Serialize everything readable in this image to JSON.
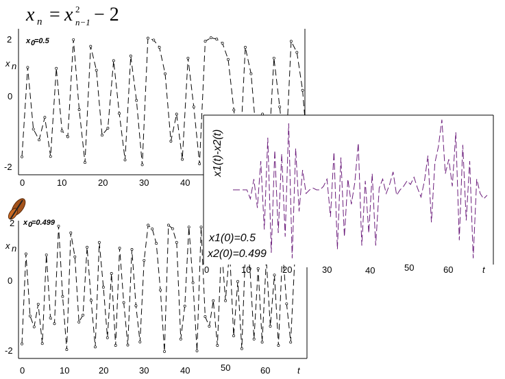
{
  "formula": {
    "lhs": "x",
    "lhs_sub": "n",
    "rhs": "x",
    "rhs_sup": "2",
    "rhs_sub": "n−1",
    "tail": "− 2"
  },
  "chart_data": [
    {
      "type": "line",
      "ylabel": "x",
      "ylabel_sub": "n",
      "annotation": "x",
      "annotation_sub": "0",
      "annotation_tail": "=0.5",
      "xticks": [
        "0",
        "10",
        "20",
        "30",
        "40"
      ],
      "yticks": [
        "2",
        "0",
        "-2"
      ],
      "ylim": [
        -2.1,
        2.1
      ],
      "xlim": [
        0,
        50
      ],
      "series": [
        {
          "values": [
            -1.75,
            1.06,
            -0.88,
            -1.22,
            -0.51,
            -1.74,
            1.03,
            -0.94,
            -1.12,
            1.93,
            -0.27,
            -1.93,
            1.72,
            0.97,
            -1.07,
            -0.85,
            1.27,
            -0.39,
            -1.85,
            1.42,
            0.02,
            -2.0,
            1.98,
            1.92,
            1.69,
            0.86,
            -1.26,
            -0.41,
            -1.83,
            1.35,
            -0.18,
            -1.97,
            1.88,
            1.99,
            1.95,
            1.82,
            1.31,
            -0.28,
            -1.92,
            1.69,
            0.86,
            -1.26,
            -0.41,
            -1.83,
            1.35,
            -0.18,
            -1.97,
            1.88,
            1.53,
            0.34,
            -1.88
          ]
        }
      ]
    },
    {
      "type": "line",
      "ylabel": "x",
      "ylabel_sub": "n",
      "annotation": "x",
      "annotation_sub": "0",
      "annotation_tail": "=0.499",
      "xticks": [
        "0",
        "10",
        "20",
        "30",
        "40",
        "50",
        "60",
        "t"
      ],
      "yticks": [
        "2",
        "0",
        "-2"
      ],
      "ylim": [
        -2.1,
        2.1
      ],
      "xlim": [
        0,
        70
      ],
      "series": [
        {
          "values": [
            -1.75,
            1.06,
            -0.88,
            -1.22,
            -0.51,
            -1.74,
            1.03,
            -0.94,
            -1.12,
            1.93,
            -0.27,
            -1.93,
            1.72,
            0.97,
            -1.07,
            -0.85,
            1.27,
            -0.39,
            -1.85,
            1.42,
            0.02,
            -1.56,
            0.45,
            -1.8,
            1.24,
            -0.46,
            -1.79,
            1.2,
            -0.56,
            -1.69,
            0.86,
            1.96,
            1.84,
            1.39,
            -0.07,
            -1.99,
            1.96,
            1.85,
            1.42,
            -1.6,
            -0.57,
            1.9,
            0.16,
            -1.97,
            1.9,
            -0.9,
            -1.2,
            -0.4,
            -1.8,
            1.3,
            -0.4,
            1.2,
            -1.5,
            0.2,
            -1.9,
            1.6,
            0.6,
            -1.6,
            0.6,
            -1.7,
            0.9,
            -1.2,
            0.4,
            -1.8,
            1.2,
            -0.5,
            -1.7,
            0.9
          ]
        }
      ]
    },
    {
      "type": "line",
      "ylabel": "x1(t)-x2(t)",
      "xticks": [
        "0",
        "10",
        "20",
        "30",
        "40",
        "50",
        "60",
        "t"
      ],
      "ylim": [
        -4,
        4
      ],
      "xlim": [
        0,
        74
      ],
      "annotation_lines": [
        "x1(0)=0.5",
        "x2(0)=0.499"
      ],
      "series": [
        {
          "values": [
            0.0,
            0.0,
            0.0,
            0.0,
            0.0,
            -0.5,
            0.6,
            -1.0,
            1.6,
            -2.2,
            2.9,
            -3.5,
            2.2,
            -2.4,
            2.0,
            -2.6,
            3.7,
            -3.8,
            2.3,
            -1.2,
            1.1,
            -0.2,
            0.0,
            0.1,
            0.0,
            0.0,
            0.2,
            0.6,
            -1.5,
            2.1,
            -3.3,
            1.8,
            -2.6,
            0.6,
            -0.8,
            0.4,
            2.6,
            -3.1,
            0.5,
            -2.4,
            0.9,
            -3.1,
            0.1,
            0.6,
            -0.2,
            0.3,
            1.0,
            -0.3,
            0.0,
            0.2,
            0.5,
            0.3,
            0.7,
            0.1,
            -0.4,
            0.5,
            1.9,
            -1.8,
            1.5,
            2.4,
            3.9,
            0.9,
            1.7,
            0.2,
            3.2,
            -2.8,
            2.5,
            -1.7,
            1.6,
            -3.8,
            0.6,
            -0.2,
            -0.5,
            -0.3
          ]
        }
      ]
    }
  ]
}
